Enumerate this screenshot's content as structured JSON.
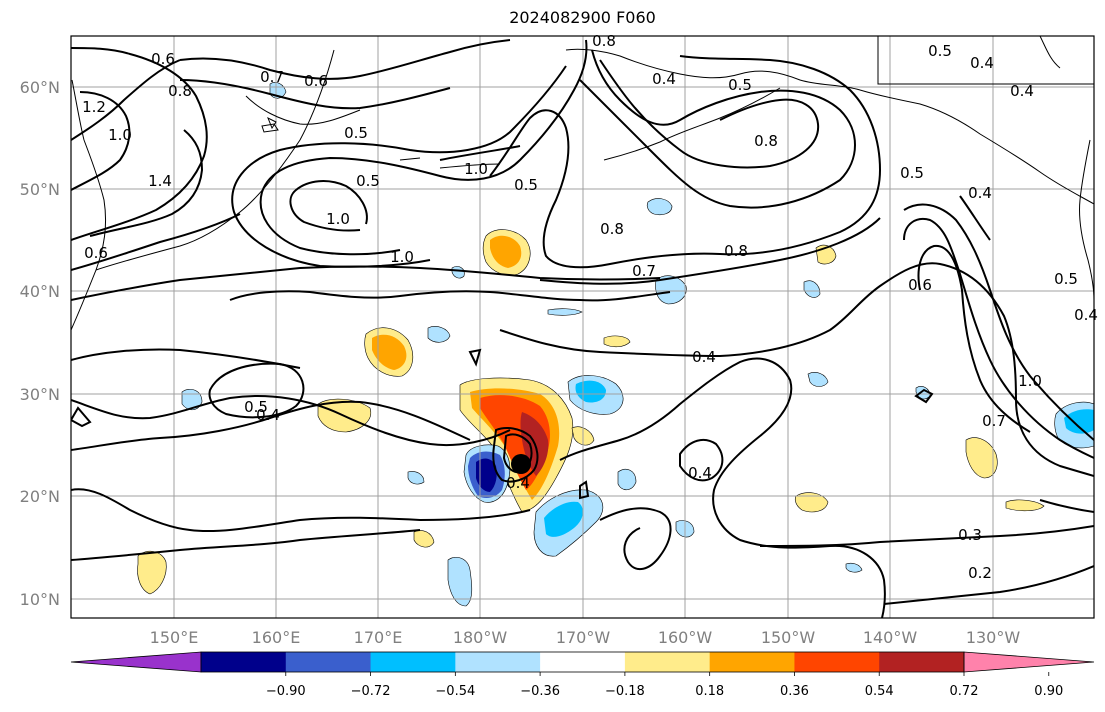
{
  "title": "2024082900 F060",
  "lat_labels": [
    "10°N",
    "20°N",
    "30°N",
    "40°N",
    "50°N",
    "60°N"
  ],
  "lon_labels": [
    "150°E",
    "160°E",
    "170°E",
    "180°W",
    "170°W",
    "160°W",
    "150°W",
    "140°W",
    "130°W"
  ],
  "colorbar": {
    "ticks": [
      "−0.90",
      "−0.72",
      "−0.54",
      "−0.36",
      "−0.18",
      "0.18",
      "0.36",
      "0.54",
      "0.72",
      "0.90"
    ],
    "colors": [
      "#9932cc",
      "#00008b",
      "#3a5fcd",
      "#00bfff",
      "#b0e2ff",
      "#ffffff",
      "#ffec8b",
      "#ffa500",
      "#ff4500",
      "#b22222",
      "#ff82ab"
    ]
  },
  "contour_labels": [
    "0.6",
    "0.8",
    "1.2",
    "1.0",
    "1.4",
    "0.6",
    "0.7",
    "0.6",
    "0.5",
    "1.0",
    "0.8",
    "0.5",
    "0.5",
    "1.0",
    "1.0",
    "0.4",
    "0.5",
    "0.8",
    "0.8",
    "0.7",
    "0.8",
    "0.5",
    "0.4",
    "0.4",
    "0.5",
    "0.4",
    "0.6",
    "0.5",
    "0.4",
    "1.0",
    "0.7",
    "0.4",
    "0.5",
    "0.4",
    "0.4",
    "0.3",
    "0.2",
    "0.4"
  ],
  "storm_center": "black dot",
  "colors": {
    "contour": "#000000",
    "grid": "#a0a0a0"
  }
}
